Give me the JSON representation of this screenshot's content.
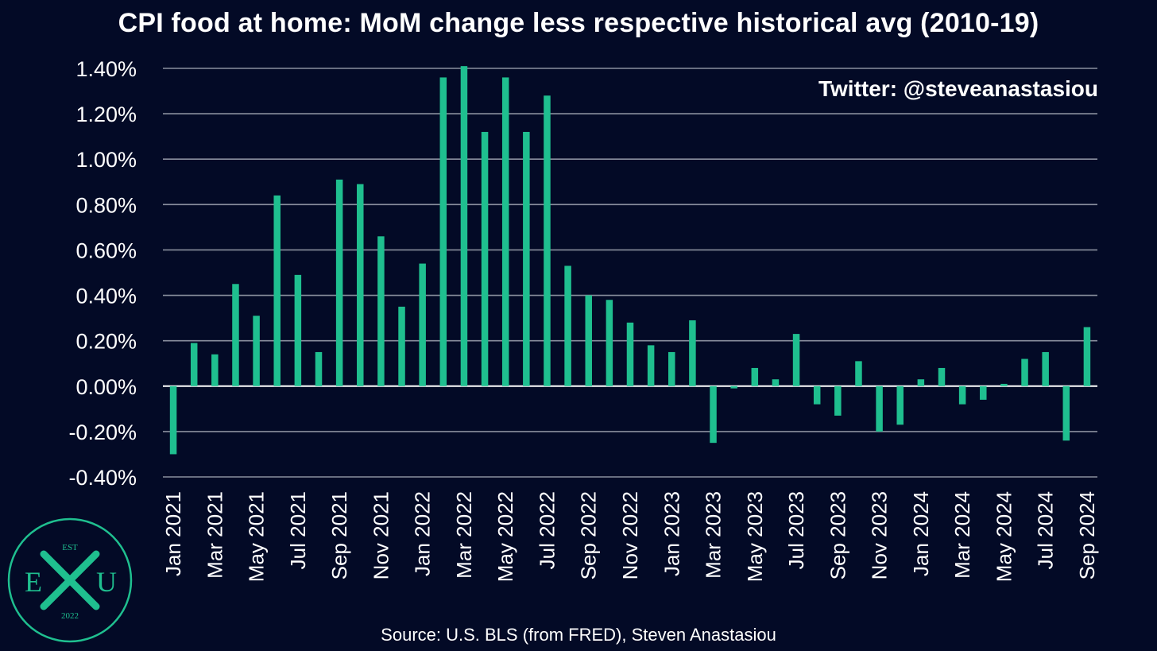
{
  "chart_data": {
    "type": "bar",
    "title": "CPI food at home: MoM change less respective historical avg (2010-19)",
    "watermark": "Twitter: @steveanastasiou",
    "source": "Source: U.S. BLS (from FRED), Steven Anastasiou",
    "xlabel": "",
    "ylabel": "",
    "ylim": [
      -0.4,
      1.4
    ],
    "yticks": [
      -0.4,
      -0.2,
      0.0,
      0.2,
      0.4,
      0.6,
      0.8,
      1.0,
      1.2,
      1.4
    ],
    "ytick_labels": [
      "-0.40%",
      "-0.20%",
      "0.00%",
      "0.20%",
      "0.40%",
      "0.60%",
      "0.80%",
      "1.00%",
      "1.20%",
      "1.40%"
    ],
    "grid": true,
    "bar_color": "#1fbf8f",
    "categories": [
      "Jan 2021",
      "Feb 2021",
      "Mar 2021",
      "Apr 2021",
      "May 2021",
      "Jun 2021",
      "Jul 2021",
      "Aug 2021",
      "Sep 2021",
      "Oct 2021",
      "Nov 2021",
      "Dec 2021",
      "Jan 2022",
      "Feb 2022",
      "Mar 2022",
      "Apr 2022",
      "May 2022",
      "Jun 2022",
      "Jul 2022",
      "Aug 2022",
      "Sep 2022",
      "Oct 2022",
      "Nov 2022",
      "Dec 2022",
      "Jan 2023",
      "Feb 2023",
      "Mar 2023",
      "Apr 2023",
      "May 2023",
      "Jun 2023",
      "Jul 2023",
      "Aug 2023",
      "Sep 2023",
      "Oct 2023",
      "Nov 2023",
      "Dec 2023",
      "Jan 2024",
      "Feb 2024",
      "Mar 2024",
      "Apr 2024",
      "May 2024",
      "Jun 2024",
      "Jul 2024",
      "Aug 2024",
      "Sep 2024"
    ],
    "xtick_labels": [
      "Jan 2021",
      "Mar 2021",
      "May 2021",
      "Jul 2021",
      "Sep 2021",
      "Nov 2021",
      "Jan 2022",
      "Mar 2022",
      "May 2022",
      "Jul 2022",
      "Sep 2022",
      "Nov 2022",
      "Jan 2023",
      "Mar 2023",
      "May 2023",
      "Jul 2023",
      "Sep 2023",
      "Nov 2023",
      "Jan 2024",
      "Mar 2024",
      "May 2024",
      "Jul 2024",
      "Sep 2024"
    ],
    "values": [
      -0.3,
      0.19,
      0.14,
      0.45,
      0.31,
      0.84,
      0.49,
      0.15,
      0.91,
      0.89,
      0.66,
      0.35,
      0.54,
      1.36,
      1.41,
      1.12,
      1.36,
      1.12,
      1.28,
      0.53,
      0.4,
      0.38,
      0.28,
      0.18,
      0.15,
      0.29,
      -0.25,
      -0.01,
      0.08,
      0.03,
      0.23,
      -0.08,
      -0.13,
      0.11,
      -0.2,
      -0.17,
      0.03,
      0.08,
      -0.08,
      -0.06,
      0.01,
      0.12,
      0.15,
      -0.24,
      0.26
    ]
  },
  "logo": {
    "top_text": "EST",
    "left_letter": "E",
    "center_letter": "X",
    "right_letter": "U",
    "bottom_text": "2022",
    "color": "#1fbf8f"
  }
}
